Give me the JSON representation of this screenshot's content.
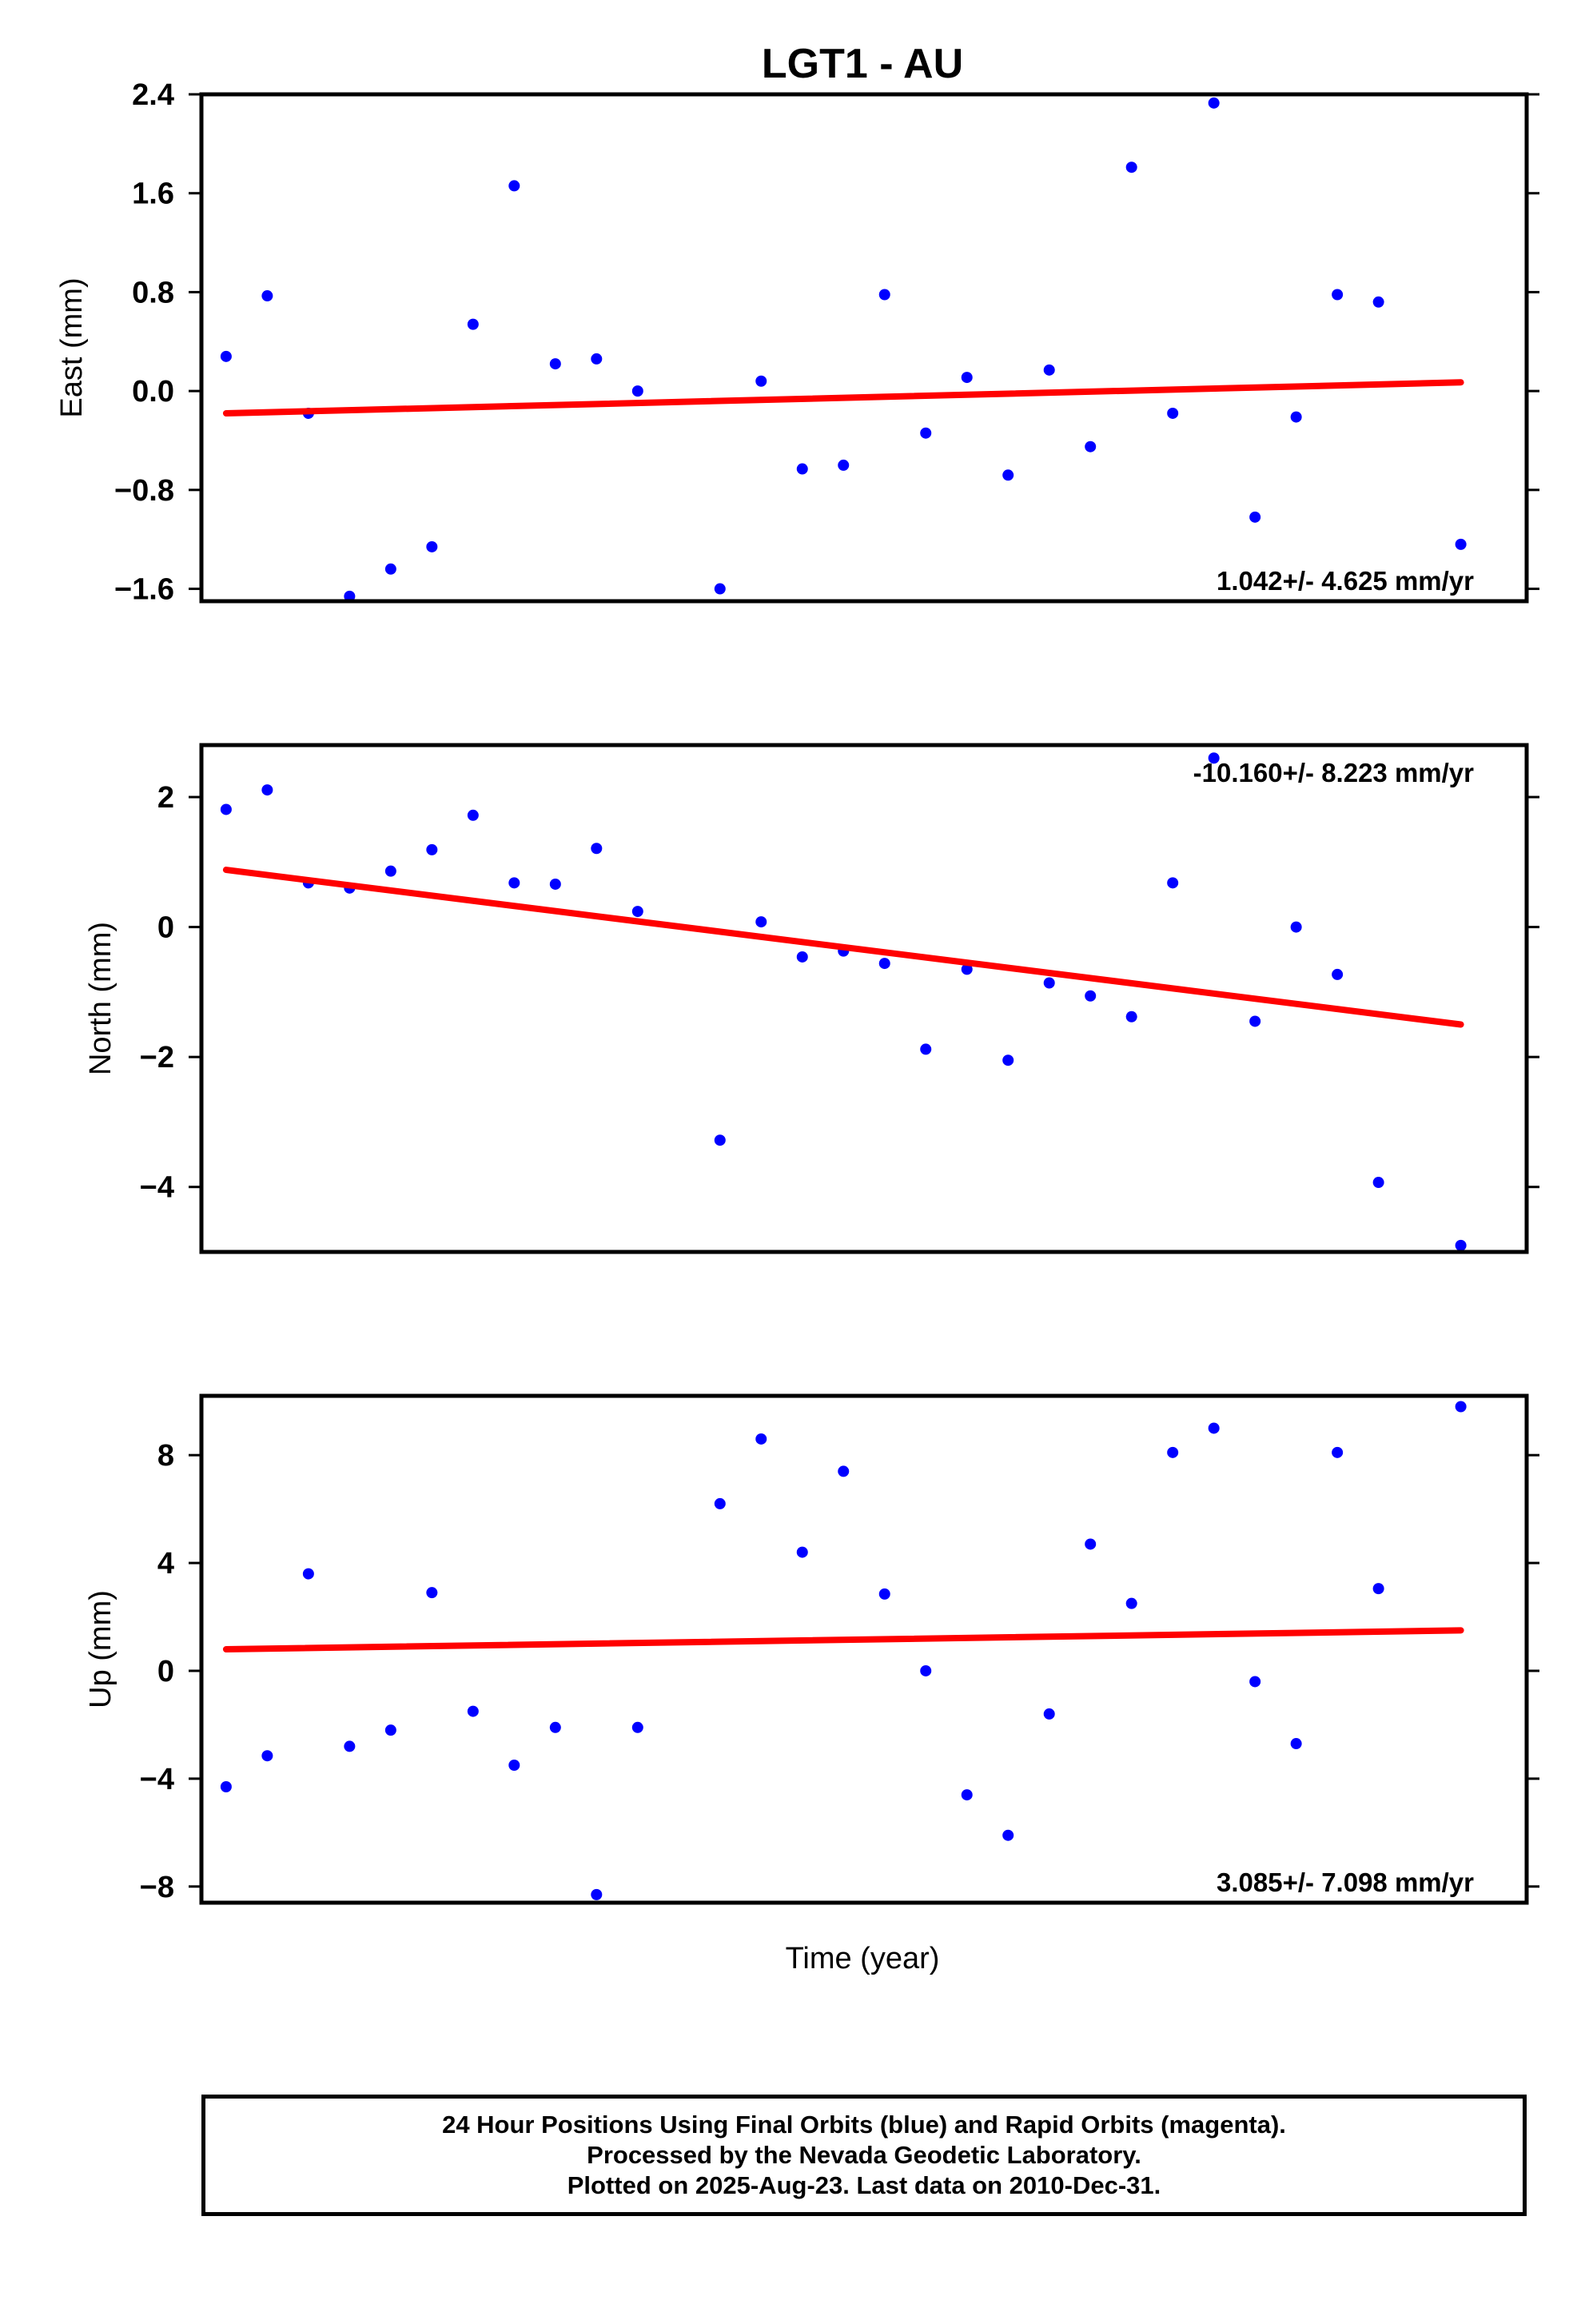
{
  "title": "LGT1 - AU",
  "xlabel": "Time (year)",
  "colors": {
    "final_orbits": "#0000ff",
    "trend_line": "#ff0000",
    "axes": "#000000"
  },
  "footer": {
    "line1": "24 Hour Positions Using Final Orbits (blue) and Rapid Orbits (magenta).",
    "line2": "Processed by the Nevada Geodetic Laboratory.",
    "line3": "Plotted on 2025-Aug-23. Last data on 2010-Dec-31."
  },
  "chart_data": [
    {
      "type": "scatter",
      "ylabel": "East (mm)",
      "rate_label": "1.042+/- 4.625 mm/yr",
      "rate_position": "bottom-right",
      "ylim": [
        -1.7,
        2.4
      ],
      "yticks": [
        -1.6,
        -0.8,
        0.0,
        0.8,
        1.6,
        2.4
      ],
      "ytick_labels": [
        "−1.6",
        "−0.8",
        "0.0",
        "0.8",
        "1.6",
        "2.4"
      ],
      "x": [
        1,
        2,
        3,
        4,
        5,
        6,
        7,
        8,
        9,
        10,
        11,
        12,
        13,
        14,
        15,
        16,
        17,
        18,
        19,
        20,
        21,
        22,
        23,
        24,
        25,
        26,
        27,
        28,
        29,
        30,
        31
      ],
      "values": [
        0.28,
        0.77,
        -0.18,
        -1.66,
        -1.44,
        -1.26,
        0.54,
        1.66,
        0.22,
        0.26,
        0.0,
        null,
        -1.6,
        0.08,
        -0.63,
        -0.6,
        0.78,
        -0.34,
        0.11,
        -0.68,
        0.17,
        -0.45,
        1.81,
        -0.18,
        2.33,
        -1.02,
        -0.21,
        0.78,
        0.72,
        null,
        -1.24
      ],
      "trend": {
        "x": [
          1,
          31
        ],
        "y": [
          -0.18,
          0.07
        ]
      },
      "grid": false
    },
    {
      "type": "scatter",
      "ylabel": "North (mm)",
      "rate_label": "-10.160+/- 8.223 mm/yr",
      "rate_position": "top-right",
      "ylim": [
        -5.0,
        2.8
      ],
      "yticks": [
        -4,
        -2,
        0,
        2
      ],
      "ytick_labels": [
        "−4",
        "−2",
        "0",
        "2"
      ],
      "x": [
        1,
        2,
        3,
        4,
        5,
        6,
        7,
        8,
        9,
        10,
        11,
        12,
        13,
        14,
        15,
        16,
        17,
        18,
        19,
        20,
        21,
        22,
        23,
        24,
        25,
        26,
        27,
        28,
        29,
        30,
        31
      ],
      "values": [
        1.81,
        2.11,
        0.68,
        0.6,
        0.86,
        1.19,
        1.72,
        0.68,
        0.66,
        1.21,
        0.24,
        null,
        -3.28,
        0.08,
        -0.46,
        -0.37,
        -0.56,
        -1.88,
        -0.65,
        -2.05,
        -0.86,
        -1.06,
        -1.38,
        0.68,
        2.6,
        -1.45,
        0.0,
        -0.73,
        -3.93,
        null,
        -4.9
      ],
      "trend": {
        "x": [
          1,
          31
        ],
        "y": [
          0.88,
          -1.5
        ]
      },
      "grid": false
    },
    {
      "type": "scatter",
      "ylabel": "Up (mm)",
      "rate_label": "3.085+/- 7.098 mm/yr",
      "rate_position": "bottom-right",
      "ylim": [
        -8.6,
        10.2
      ],
      "yticks": [
        -8,
        -4,
        0,
        4,
        8
      ],
      "ytick_labels": [
        "−8",
        "−4",
        "0",
        "4",
        "8"
      ],
      "x": [
        1,
        2,
        3,
        4,
        5,
        6,
        7,
        8,
        9,
        10,
        11,
        12,
        13,
        14,
        15,
        16,
        17,
        18,
        19,
        20,
        21,
        22,
        23,
        24,
        25,
        26,
        27,
        28,
        29,
        30,
        31
      ],
      "values": [
        -4.3,
        -3.15,
        3.6,
        -2.8,
        -2.2,
        2.9,
        -1.5,
        -3.5,
        -2.1,
        -8.3,
        -2.1,
        null,
        6.2,
        8.6,
        4.4,
        7.4,
        2.85,
        0.0,
        -4.6,
        -6.1,
        -1.6,
        4.7,
        2.5,
        8.1,
        9.0,
        -0.4,
        -2.7,
        8.1,
        3.05,
        null,
        9.8
      ],
      "trend": {
        "x": [
          1,
          31
        ],
        "y": [
          0.8,
          1.5
        ]
      },
      "grid": false
    }
  ]
}
